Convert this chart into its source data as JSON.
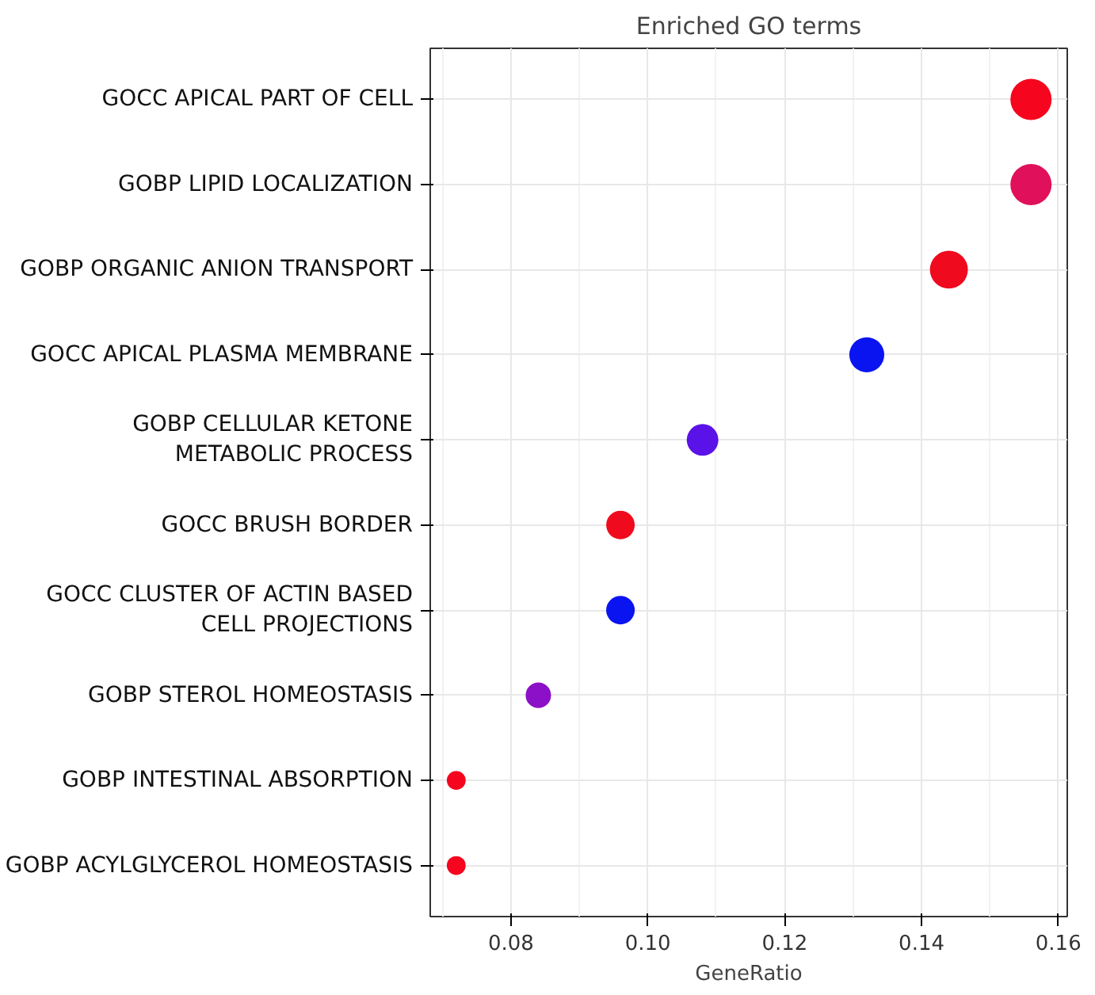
{
  "chart_data": {
    "type": "bubble",
    "title": "Enriched GO terms",
    "xlabel": "GeneRatio",
    "categories": [
      "GOCC APICAL PART OF CELL",
      "GOBP LIPID LOCALIZATION",
      "GOBP ORGANIC ANION TRANSPORT",
      "GOCC APICAL PLASMA MEMBRANE",
      "GOBP CELLULAR KETONE\nMETABOLIC PROCESS",
      "GOCC BRUSH BORDER",
      "GOCC CLUSTER OF ACTIN BASED\nCELL PROJECTIONS",
      "GOBP STEROL HOMEOSTASIS",
      "GOBP INTESTINAL ABSORPTION",
      "GOBP ACYLGLYCEROL HOMEOSTASIS"
    ],
    "values": [
      0.156,
      0.156,
      0.144,
      0.132,
      0.108,
      0.096,
      0.096,
      0.084,
      0.072,
      0.072
    ],
    "sizes": [
      1,
      1,
      0.85,
      0.72,
      0.59,
      0.48,
      0.48,
      0.38,
      0.21,
      0.21
    ],
    "colors": [
      "#f5051e",
      "#e0105a",
      "#f00a1e",
      "#0a14f0",
      "#5a12e8",
      "#f00a1e",
      "#0a14f0",
      "#8c10c8",
      "#f5051e",
      "#f5051e"
    ],
    "orientation": "horizontal",
    "xlim": [
      0.0682,
      0.1613
    ],
    "xticks": [
      {
        "value": 0.08,
        "label": "0.08"
      },
      {
        "value": 0.1,
        "label": "0.10"
      },
      {
        "value": 0.12,
        "label": "0.12"
      },
      {
        "value": 0.14,
        "label": "0.14"
      },
      {
        "value": 0.16,
        "label": "0.16"
      }
    ],
    "grid": true
  }
}
